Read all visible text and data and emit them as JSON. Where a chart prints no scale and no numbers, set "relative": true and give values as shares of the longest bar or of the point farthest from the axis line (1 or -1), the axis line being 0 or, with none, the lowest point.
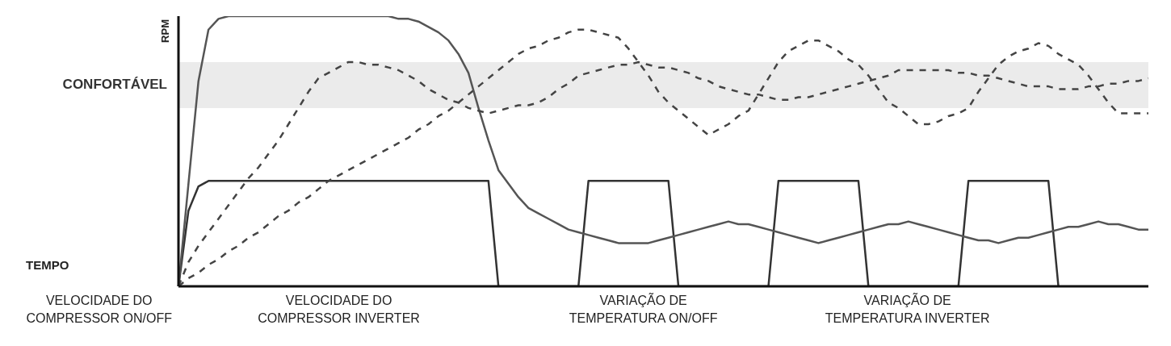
{
  "chart_data": {
    "type": "line",
    "relative": true,
    "ylabel": "RPM",
    "categories": [
      null,
      null,
      null,
      null,
      null,
      null,
      null,
      null,
      null,
      null,
      null,
      null,
      null,
      null,
      null,
      null,
      null,
      null,
      null,
      null,
      null,
      null,
      null,
      null,
      null,
      null,
      null,
      null,
      null,
      null,
      null,
      null,
      null,
      null,
      null,
      null,
      null,
      null,
      null,
      null,
      null,
      null,
      null,
      null,
      null,
      null,
      null,
      null,
      null,
      null,
      null,
      null,
      null,
      null,
      null,
      null,
      null,
      null,
      null,
      null,
      null,
      null,
      null,
      null,
      null,
      null,
      null,
      null,
      null,
      null,
      null,
      null,
      null,
      null,
      null,
      null,
      null,
      null,
      null,
      null,
      null,
      null,
      null,
      null,
      null,
      null,
      null,
      null,
      null,
      null,
      null,
      null,
      null,
      null,
      null,
      null,
      null,
      null
    ],
    "bands": [
      {
        "axis": "y",
        "from": 0.66,
        "to": 0.83,
        "label": "CONFORTÁVEL",
        "color": "#e2e2e2"
      }
    ],
    "annotations": [
      "TEMPO",
      "VELOCIDADE DO COMPRESSOR ON/OFF",
      "VELOCIDADE DO COMPRESSOR INVERTER",
      "VARIAÇÃO DE TEMPERATURA ON/OFF",
      "VARIAÇÃO DE TEMPERATURA INVERTER"
    ],
    "series": [
      {
        "color": "#333333",
        "line_style": "solid",
        "values": [
          0,
          0.28,
          0.37,
          0.39,
          0.39,
          0.39,
          0.39,
          0.39,
          0.39,
          0.39,
          0.39,
          0.39,
          0.39,
          0.39,
          0.39,
          0.39,
          0.39,
          0.39,
          0.39,
          0.39,
          0.39,
          0.39,
          0.39,
          0.39,
          0.39,
          0.39,
          0.39,
          0.39,
          0.39,
          0.39,
          0.39,
          0.39,
          0,
          0,
          0,
          0,
          0,
          0,
          0,
          0,
          0,
          0.39,
          0.39,
          0.39,
          0.39,
          0.39,
          0.39,
          0.39,
          0.39,
          0.39,
          0,
          0,
          0,
          0,
          0,
          0,
          0,
          0,
          0,
          0,
          0.39,
          0.39,
          0.39,
          0.39,
          0.39,
          0.39,
          0.39,
          0.39,
          0.39,
          0,
          0,
          0,
          0,
          0,
          0,
          0,
          0,
          0,
          0,
          0.39,
          0.39,
          0.39,
          0.39,
          0.39,
          0.39,
          0.39,
          0.39,
          0.39,
          0,
          null,
          null,
          null,
          null,
          null,
          null,
          null,
          null,
          null
        ]
      },
      {
        "color": "#555555",
        "line_style": "solid",
        "values": [
          0,
          0.38,
          0.76,
          0.95,
          0.99,
          1,
          1,
          1,
          1,
          1,
          1,
          1,
          1,
          1,
          1,
          1,
          1,
          1,
          1,
          1,
          1,
          1,
          0.99,
          0.99,
          0.98,
          0.96,
          0.94,
          0.91,
          0.86,
          0.79,
          0.66,
          0.54,
          0.43,
          0.38,
          0.33,
          0.29,
          0.27,
          0.25,
          0.23,
          0.21,
          0.2,
          0.19,
          0.18,
          0.17,
          0.16,
          0.16,
          0.16,
          0.16,
          0.17,
          0.18,
          0.19,
          0.2,
          0.21,
          0.22,
          0.23,
          0.24,
          0.23,
          0.23,
          0.22,
          0.21,
          0.2,
          0.19,
          0.18,
          0.17,
          0.16,
          0.17,
          0.18,
          0.19,
          0.2,
          0.21,
          0.22,
          0.23,
          0.23,
          0.24,
          0.23,
          0.22,
          0.21,
          0.2,
          0.19,
          0.18,
          0.17,
          0.17,
          0.16,
          0.17,
          0.18,
          0.18,
          0.19,
          0.2,
          0.21,
          0.22,
          0.22,
          0.23,
          0.24,
          0.23,
          0.23,
          0.22,
          0.21,
          0.21
        ]
      },
      {
        "color": "#444444",
        "line_style": "dashed",
        "values": [
          0,
          0.03,
          0.05,
          0.08,
          0.1,
          0.13,
          0.15,
          0.18,
          0.2,
          0.23,
          0.26,
          0.28,
          0.31,
          0.33,
          0.36,
          0.39,
          0.41,
          0.43,
          0.45,
          0.47,
          0.49,
          0.51,
          0.53,
          0.55,
          0.58,
          0.6,
          0.63,
          0.65,
          0.68,
          0.71,
          0.74,
          0.77,
          0.8,
          0.83,
          0.86,
          0.88,
          0.89,
          0.91,
          0.92,
          0.94,
          0.95,
          0.95,
          0.94,
          0.93,
          0.92,
          0.88,
          0.83,
          0.78,
          0.72,
          0.68,
          0.65,
          0.62,
          0.59,
          0.56,
          0.58,
          0.6,
          0.63,
          0.65,
          0.71,
          0.77,
          0.83,
          0.87,
          0.89,
          0.91,
          0.91,
          0.89,
          0.87,
          0.84,
          0.82,
          0.78,
          0.73,
          0.68,
          0.66,
          0.63,
          0.6,
          0.6,
          0.61,
          0.63,
          0.64,
          0.66,
          0.72,
          0.77,
          0.82,
          0.85,
          0.87,
          0.88,
          0.9,
          0.89,
          0.86,
          0.84,
          0.82,
          0.78,
          0.73,
          0.68,
          0.64,
          0.64,
          0.64,
          0.64
        ]
      },
      {
        "color": "#444444",
        "line_style": "dashed",
        "values": [
          0,
          0.09,
          0.15,
          0.2,
          0.25,
          0.3,
          0.35,
          0.4,
          0.44,
          0.49,
          0.54,
          0.6,
          0.66,
          0.72,
          0.77,
          0.79,
          0.81,
          0.83,
          0.83,
          0.82,
          0.82,
          0.81,
          0.8,
          0.78,
          0.76,
          0.73,
          0.71,
          0.69,
          0.68,
          0.66,
          0.65,
          0.64,
          0.65,
          0.66,
          0.67,
          0.67,
          0.68,
          0.7,
          0.73,
          0.75,
          0.78,
          0.79,
          0.8,
          0.81,
          0.82,
          0.82,
          0.83,
          0.82,
          0.81,
          0.81,
          0.8,
          0.79,
          0.77,
          0.76,
          0.74,
          0.73,
          0.72,
          0.71,
          0.71,
          0.7,
          0.69,
          0.69,
          0.7,
          0.7,
          0.71,
          0.72,
          0.73,
          0.74,
          0.75,
          0.76,
          0.77,
          0.78,
          0.8,
          0.8,
          0.8,
          0.8,
          0.8,
          0.8,
          0.79,
          0.79,
          0.78,
          0.78,
          0.77,
          0.76,
          0.75,
          0.74,
          0.74,
          0.74,
          0.73,
          0.73,
          0.73,
          0.74,
          0.74,
          0.75,
          0.75,
          0.76,
          0.76,
          0.77
        ]
      }
    ]
  }
}
